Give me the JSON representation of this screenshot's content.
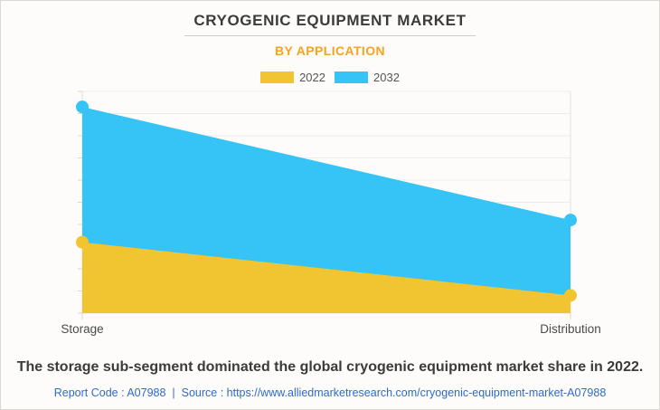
{
  "title": "CRYOGENIC EQUIPMENT MARKET",
  "subtitle": "BY APPLICATION",
  "legend": [
    {
      "label": "2022",
      "color": "#F1C431"
    },
    {
      "label": "2032",
      "color": "#36C3F5"
    }
  ],
  "chart_data": {
    "type": "area",
    "categories": [
      "Storage",
      "Distribution"
    ],
    "series": [
      {
        "name": "2022",
        "color": "#F1C431",
        "values": [
          32,
          8
        ]
      },
      {
        "name": "2032",
        "color": "#36C3F5",
        "values": [
          93,
          42
        ]
      }
    ],
    "title": "CRYOGENIC EQUIPMENT MARKET",
    "xlabel": "",
    "ylabel": "",
    "ylim": [
      0,
      100
    ],
    "grid": true,
    "legend_position": "top"
  },
  "caption": "The storage sub-segment dominated the global cryogenic equipment market share in 2022.",
  "footer": {
    "report_code": "Report Code : A07988",
    "separator": "|",
    "source_prefix": "Source :",
    "url": "https://www.alliedmarketresearch.com/cryogenic-equipment-market-A07988"
  },
  "colors": {
    "accent_orange": "#F8A21D",
    "footer_link_blue": "#2D6BC8",
    "text_dark": "#3B3B3B",
    "gridline": "#EDECEA",
    "axis_line": "#E3E1DE",
    "tick": "#D8D6D2",
    "axis_label": "#4A4A4A"
  }
}
